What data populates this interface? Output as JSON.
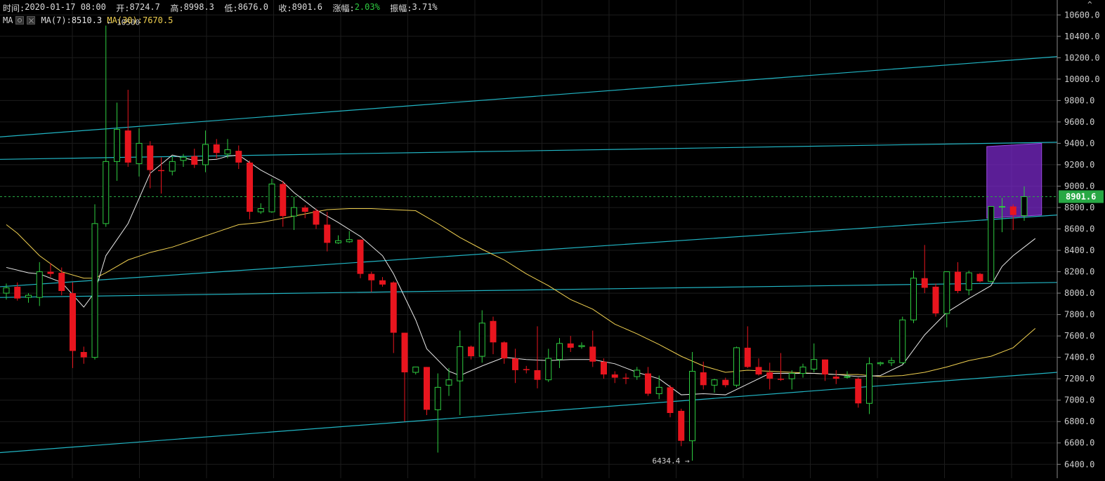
{
  "info_bar": {
    "time_label": "时间:",
    "time": "2020-01-17 08:00",
    "open_label": "开:",
    "open": "8724.7",
    "high_label": "高:",
    "high": "8998.3",
    "low_label": "低:",
    "low": "8676.0",
    "close_label": "收:",
    "close": "8901.6",
    "change_label": "涨幅:",
    "change": "2.03%",
    "amplitude_label": "振幅:",
    "amplitude": "3.71%"
  },
  "ma_bar": {
    "label": "MA",
    "ma7_label": "MA(7):",
    "ma7": "8510.3",
    "ma30_label": "MA(30):",
    "ma30": "7670.5"
  },
  "annotations": {
    "high_marker": "← 10500",
    "low_marker": "6434.4 →",
    "top_arrow": "^"
  },
  "colors": {
    "background": "#000000",
    "up": "#2ecc40",
    "down": "#e8151e",
    "trendline": "#21b5c4",
    "ma7": "#e8e8e8",
    "ma30": "#f0d050",
    "grid": "#1c1c1c",
    "price_tag": "#27a844",
    "highlight_box": "#7a28c8"
  },
  "chart_data": {
    "type": "candlestick",
    "y_axis": {
      "ylim": [
        6310,
        10700
      ],
      "ticks": [
        "6400.0",
        "6600.0",
        "6800.0",
        "7000.0",
        "7200.0",
        "7400.0",
        "7600.0",
        "7800.0",
        "8000.0",
        "8200.0",
        "8400.0",
        "8600.0",
        "8800.0",
        "9000.0",
        "9200.0",
        "9400.0",
        "9600.0",
        "9800.0",
        "10000.0",
        "10200.0",
        "10400.0",
        "10600.0"
      ],
      "current_price": "8901.6",
      "current_value": 8901.6
    },
    "grid": true,
    "candles": [
      {
        "o": 8000,
        "h": 8090,
        "l": 7940,
        "c": 8050
      },
      {
        "o": 8060,
        "h": 8100,
        "l": 7930,
        "c": 7950
      },
      {
        "o": 7960,
        "h": 8000,
        "l": 7910,
        "c": 7980
      },
      {
        "o": 7960,
        "h": 8290,
        "l": 7880,
        "c": 8200
      },
      {
        "o": 8200,
        "h": 8280,
        "l": 8150,
        "c": 8180
      },
      {
        "o": 8190,
        "h": 8240,
        "l": 7980,
        "c": 8020
      },
      {
        "o": 8000,
        "h": 8100,
        "l": 7300,
        "c": 7460
      },
      {
        "o": 7450,
        "h": 7500,
        "l": 7340,
        "c": 7400
      },
      {
        "o": 7400,
        "h": 8830,
        "l": 7380,
        "c": 8650
      },
      {
        "o": 8650,
        "h": 10500,
        "l": 8620,
        "c": 9230
      },
      {
        "o": 9230,
        "h": 9780,
        "l": 9050,
        "c": 9530
      },
      {
        "o": 9520,
        "h": 9900,
        "l": 9180,
        "c": 9220
      },
      {
        "o": 9210,
        "h": 9540,
        "l": 9090,
        "c": 9400
      },
      {
        "o": 9380,
        "h": 9420,
        "l": 8980,
        "c": 9150
      },
      {
        "o": 9150,
        "h": 9270,
        "l": 8930,
        "c": 9140
      },
      {
        "o": 9140,
        "h": 9280,
        "l": 9100,
        "c": 9230
      },
      {
        "o": 9240,
        "h": 9300,
        "l": 9180,
        "c": 9270
      },
      {
        "o": 9280,
        "h": 9350,
        "l": 9170,
        "c": 9200
      },
      {
        "o": 9200,
        "h": 9520,
        "l": 9130,
        "c": 9390
      },
      {
        "o": 9390,
        "h": 9440,
        "l": 9260,
        "c": 9310
      },
      {
        "o": 9300,
        "h": 9440,
        "l": 9260,
        "c": 9340
      },
      {
        "o": 9330,
        "h": 9380,
        "l": 9160,
        "c": 9220
      },
      {
        "o": 9220,
        "h": 9240,
        "l": 8690,
        "c": 8760
      },
      {
        "o": 8760,
        "h": 8840,
        "l": 8740,
        "c": 8790
      },
      {
        "o": 8760,
        "h": 9070,
        "l": 8750,
        "c": 9020
      },
      {
        "o": 9020,
        "h": 9050,
        "l": 8620,
        "c": 8720
      },
      {
        "o": 8720,
        "h": 8900,
        "l": 8590,
        "c": 8800
      },
      {
        "o": 8800,
        "h": 8820,
        "l": 8700,
        "c": 8760
      },
      {
        "o": 8770,
        "h": 8790,
        "l": 8600,
        "c": 8640
      },
      {
        "o": 8640,
        "h": 8760,
        "l": 8390,
        "c": 8470
      },
      {
        "o": 8470,
        "h": 8540,
        "l": 8460,
        "c": 8490
      },
      {
        "o": 8480,
        "h": 8580,
        "l": 8470,
        "c": 8500
      },
      {
        "o": 8500,
        "h": 8500,
        "l": 8140,
        "c": 8180
      },
      {
        "o": 8180,
        "h": 8200,
        "l": 8010,
        "c": 8120
      },
      {
        "o": 8120,
        "h": 8150,
        "l": 8060,
        "c": 8080
      },
      {
        "o": 8100,
        "h": 8110,
        "l": 7440,
        "c": 7630
      },
      {
        "o": 7630,
        "h": 7630,
        "l": 6800,
        "c": 7260
      },
      {
        "o": 7260,
        "h": 7310,
        "l": 7240,
        "c": 7310
      },
      {
        "o": 7310,
        "h": 7310,
        "l": 6860,
        "c": 6910
      },
      {
        "o": 6910,
        "h": 7250,
        "l": 6510,
        "c": 7120
      },
      {
        "o": 7140,
        "h": 7300,
        "l": 7040,
        "c": 7190
      },
      {
        "o": 7180,
        "h": 7650,
        "l": 6860,
        "c": 7500
      },
      {
        "o": 7500,
        "h": 7510,
        "l": 7380,
        "c": 7410
      },
      {
        "o": 7410,
        "h": 7840,
        "l": 7350,
        "c": 7720
      },
      {
        "o": 7740,
        "h": 7780,
        "l": 7430,
        "c": 7540
      },
      {
        "o": 7540,
        "h": 7550,
        "l": 7340,
        "c": 7390
      },
      {
        "o": 7390,
        "h": 7480,
        "l": 7160,
        "c": 7280
      },
      {
        "o": 7290,
        "h": 7320,
        "l": 7250,
        "c": 7280
      },
      {
        "o": 7280,
        "h": 7690,
        "l": 7110,
        "c": 7190
      },
      {
        "o": 7190,
        "h": 7480,
        "l": 7170,
        "c": 7390
      },
      {
        "o": 7380,
        "h": 7580,
        "l": 7300,
        "c": 7530
      },
      {
        "o": 7530,
        "h": 7600,
        "l": 7450,
        "c": 7490
      },
      {
        "o": 7500,
        "h": 7540,
        "l": 7480,
        "c": 7510
      },
      {
        "o": 7500,
        "h": 7650,
        "l": 7310,
        "c": 7360
      },
      {
        "o": 7360,
        "h": 7390,
        "l": 7200,
        "c": 7240
      },
      {
        "o": 7240,
        "h": 7270,
        "l": 7160,
        "c": 7210
      },
      {
        "o": 7210,
        "h": 7250,
        "l": 7150,
        "c": 7200
      },
      {
        "o": 7220,
        "h": 7310,
        "l": 7190,
        "c": 7280
      },
      {
        "o": 7250,
        "h": 7310,
        "l": 7040,
        "c": 7060
      },
      {
        "o": 7060,
        "h": 7230,
        "l": 7010,
        "c": 7120
      },
      {
        "o": 7120,
        "h": 7140,
        "l": 6840,
        "c": 6880
      },
      {
        "o": 6900,
        "h": 6920,
        "l": 6570,
        "c": 6620
      },
      {
        "o": 6620,
        "h": 7450,
        "l": 6434.4,
        "c": 7270
      },
      {
        "o": 7260,
        "h": 7360,
        "l": 7100,
        "c": 7140
      },
      {
        "o": 7140,
        "h": 7200,
        "l": 7070,
        "c": 7190
      },
      {
        "o": 7190,
        "h": 7210,
        "l": 7120,
        "c": 7140
      },
      {
        "o": 7140,
        "h": 7500,
        "l": 7120,
        "c": 7490
      },
      {
        "o": 7490,
        "h": 7690,
        "l": 7300,
        "c": 7310
      },
      {
        "o": 7310,
        "h": 7390,
        "l": 7230,
        "c": 7240
      },
      {
        "o": 7260,
        "h": 7350,
        "l": 7100,
        "c": 7200
      },
      {
        "o": 7200,
        "h": 7440,
        "l": 7180,
        "c": 7190
      },
      {
        "o": 7200,
        "h": 7280,
        "l": 7100,
        "c": 7250
      },
      {
        "o": 7250,
        "h": 7340,
        "l": 7210,
        "c": 7310
      },
      {
        "o": 7290,
        "h": 7530,
        "l": 7260,
        "c": 7380
      },
      {
        "o": 7380,
        "h": 7380,
        "l": 7180,
        "c": 7240
      },
      {
        "o": 7220,
        "h": 7280,
        "l": 7150,
        "c": 7200
      },
      {
        "o": 7220,
        "h": 7270,
        "l": 7200,
        "c": 7220
      },
      {
        "o": 7200,
        "h": 7210,
        "l": 6930,
        "c": 6970
      },
      {
        "o": 6970,
        "h": 7400,
        "l": 6870,
        "c": 7340
      },
      {
        "o": 7340,
        "h": 7360,
        "l": 7320,
        "c": 7350
      },
      {
        "o": 7350,
        "h": 7400,
        "l": 7320,
        "c": 7370
      },
      {
        "o": 7350,
        "h": 7780,
        "l": 7340,
        "c": 7750
      },
      {
        "o": 7750,
        "h": 8210,
        "l": 7720,
        "c": 8140
      },
      {
        "o": 8140,
        "h": 8450,
        "l": 8000,
        "c": 8050
      },
      {
        "o": 8060,
        "h": 8090,
        "l": 7780,
        "c": 7810
      },
      {
        "o": 7810,
        "h": 8200,
        "l": 7680,
        "c": 8200
      },
      {
        "o": 8200,
        "h": 8290,
        "l": 8000,
        "c": 8020
      },
      {
        "o": 8030,
        "h": 8210,
        "l": 7980,
        "c": 8190
      },
      {
        "o": 8180,
        "h": 8190,
        "l": 8100,
        "c": 8110
      },
      {
        "o": 8110,
        "h": 8810,
        "l": 8100,
        "c": 8810
      },
      {
        "o": 8810,
        "h": 8890,
        "l": 8570,
        "c": 8810
      },
      {
        "o": 8810,
        "h": 8830,
        "l": 8590,
        "c": 8730
      },
      {
        "o": 8724.7,
        "h": 8998.3,
        "l": 8676.0,
        "c": 8901.6
      }
    ],
    "ma7": [
      [
        0,
        8240
      ],
      [
        2,
        8190
      ],
      [
        3,
        8180
      ],
      [
        5,
        8100
      ],
      [
        7,
        7870
      ],
      [
        8,
        8010
      ],
      [
        9,
        8350
      ],
      [
        11,
        8650
      ],
      [
        13,
        9120
      ],
      [
        15,
        9290
      ],
      [
        17,
        9240
      ],
      [
        19,
        9250
      ],
      [
        20,
        9280
      ],
      [
        21,
        9290
      ],
      [
        23,
        9150
      ],
      [
        25,
        9040
      ],
      [
        26,
        8940
      ],
      [
        28,
        8780
      ],
      [
        30,
        8660
      ],
      [
        32,
        8530
      ],
      [
        34,
        8350
      ],
      [
        35,
        8180
      ],
      [
        37,
        7750
      ],
      [
        38,
        7480
      ],
      [
        40,
        7270
      ],
      [
        41,
        7230
      ],
      [
        43,
        7320
      ],
      [
        45,
        7400
      ],
      [
        47,
        7380
      ],
      [
        49,
        7370
      ],
      [
        51,
        7380
      ],
      [
        53,
        7380
      ],
      [
        55,
        7340
      ],
      [
        57,
        7260
      ],
      [
        59,
        7200
      ],
      [
        61,
        7050
      ],
      [
        63,
        7060
      ],
      [
        65,
        7050
      ],
      [
        67,
        7150
      ],
      [
        69,
        7250
      ],
      [
        71,
        7250
      ],
      [
        73,
        7250
      ],
      [
        75,
        7240
      ],
      [
        77,
        7220
      ],
      [
        79,
        7230
      ],
      [
        81,
        7330
      ],
      [
        83,
        7610
      ],
      [
        85,
        7820
      ],
      [
        87,
        7950
      ],
      [
        89,
        8070
      ],
      [
        90,
        8250
      ],
      [
        91,
        8350
      ],
      [
        92,
        8430
      ],
      [
        93,
        8510.3
      ]
    ],
    "ma30": [
      [
        0,
        8640
      ],
      [
        1,
        8560
      ],
      [
        3,
        8350
      ],
      [
        5,
        8200
      ],
      [
        7,
        8140
      ],
      [
        8,
        8140
      ],
      [
        9,
        8190
      ],
      [
        11,
        8310
      ],
      [
        13,
        8380
      ],
      [
        15,
        8430
      ],
      [
        17,
        8500
      ],
      [
        19,
        8570
      ],
      [
        21,
        8640
      ],
      [
        23,
        8660
      ],
      [
        25,
        8700
      ],
      [
        27,
        8740
      ],
      [
        29,
        8780
      ],
      [
        31,
        8790
      ],
      [
        33,
        8790
      ],
      [
        35,
        8780
      ],
      [
        37,
        8770
      ],
      [
        39,
        8650
      ],
      [
        41,
        8520
      ],
      [
        43,
        8410
      ],
      [
        45,
        8310
      ],
      [
        47,
        8180
      ],
      [
        49,
        8070
      ],
      [
        51,
        7940
      ],
      [
        53,
        7850
      ],
      [
        55,
        7710
      ],
      [
        57,
        7620
      ],
      [
        59,
        7520
      ],
      [
        61,
        7410
      ],
      [
        63,
        7320
      ],
      [
        65,
        7260
      ],
      [
        67,
        7280
      ],
      [
        69,
        7270
      ],
      [
        71,
        7260
      ],
      [
        73,
        7250
      ],
      [
        75,
        7240
      ],
      [
        77,
        7240
      ],
      [
        79,
        7220
      ],
      [
        81,
        7230
      ],
      [
        83,
        7260
      ],
      [
        85,
        7310
      ],
      [
        87,
        7370
      ],
      [
        89,
        7410
      ],
      [
        91,
        7490
      ],
      [
        92,
        7580
      ],
      [
        93,
        7670.5
      ]
    ],
    "trendlines": [
      {
        "from": [
          0,
          9460
        ],
        "to": [
          93,
          10210
        ]
      },
      {
        "from": [
          0,
          9250
        ],
        "to": [
          93,
          9410
        ]
      },
      {
        "from": [
          0,
          8060
        ],
        "to": [
          93,
          8730
        ]
      },
      {
        "from": [
          0,
          7960
        ],
        "to": [
          93,
          8100
        ]
      },
      {
        "from": [
          0,
          6510
        ],
        "to": [
          93,
          7260
        ]
      }
    ],
    "highlight_box": {
      "from_candle": 89,
      "to_candle": 93,
      "from_high": 9370,
      "to_high": 9400,
      "from_low": 8700,
      "to_low": 8730
    }
  }
}
